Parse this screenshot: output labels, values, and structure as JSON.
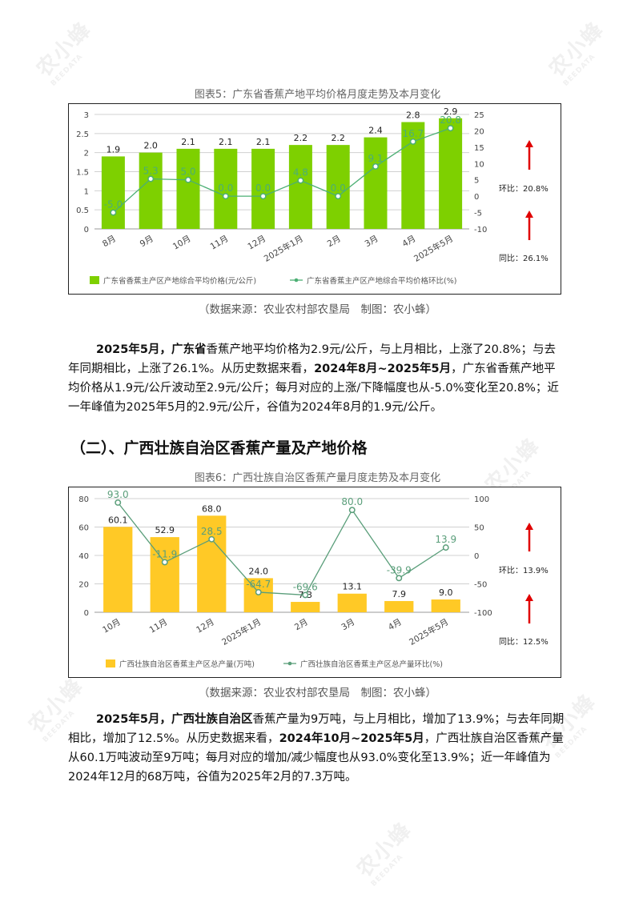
{
  "watermark": {
    "text": "农小蜂",
    "sub": "BEEDATA"
  },
  "figure5": {
    "title": "图表5：广东省香蕉产地平均价格月度走势及本月变化",
    "source": "（数据来源：农业农村部农垦局　制图：农小蜂）",
    "side_labels": {
      "mom": "环比：20.8%",
      "yoy": "同比：26.1%"
    },
    "colors": {
      "bar": "#7ed000",
      "line": "#4caf74",
      "arrow": "#e00000"
    }
  },
  "para1": {
    "s1": "2025年5月，",
    "s2": "广东省",
    "s3": "香蕉产地平均价格为2.9元/公斤，与上月相比，上涨了20.8%；与去年同期相比，上涨了26.1%。从历史数据来看，",
    "s4": "2024年8月~2025年5月",
    "s5": "，广东省香蕉产地平均价格从1.9元/公斤波动至2.9元/公斤；每月对应的上涨/下降幅度也从-5.0%变化至20.8%；近一年峰值为2025年5月的2.9元/公斤，谷值为2024年8月的1.9元/公斤。"
  },
  "section2": {
    "title": "（二）、广西壮族自治区香蕉产量及产地价格"
  },
  "figure6": {
    "title": "图表6：广西壮族自治区香蕉产量月度走势及本月变化",
    "source": "（数据来源：农业农村部农垦局　制图：农小蜂）",
    "side_labels": {
      "mom": "环比：13.9%",
      "yoy": "同比：12.5%"
    },
    "colors": {
      "bar": "#ffc926",
      "line": "#5a9e7a",
      "arrow": "#e00000"
    }
  },
  "para2": {
    "s1": "2025年5月，",
    "s2": "广西壮族自治区",
    "s3": "香蕉产量为9万吨，与上月相比，增加了13.9%；与去年同期相比，增加了12.5%。从历史数据来看，",
    "s4": "2024年10月~2025年5月",
    "s5": "，广西壮族自治区香蕉产量从60.1万吨波动至9万吨；每月对应的增加/减少幅度也从93.0%变化至13.9%；近一年峰值为2024年12月的68万吨，谷值为2025年2月的7.3万吨。"
  },
  "chart_data": [
    {
      "type": "bar",
      "categories": [
        "8月",
        "9月",
        "10月",
        "11月",
        "12月",
        "2025年1月",
        "2月",
        "3月",
        "4月",
        "2025年5月"
      ],
      "series": [
        {
          "name": "广东省香蕉主产区产地综合平均价格(元/公斤)",
          "type": "bar",
          "axis": "left",
          "values": [
            1.9,
            2.0,
            2.1,
            2.1,
            2.1,
            2.2,
            2.2,
            2.4,
            2.8,
            2.9
          ]
        },
        {
          "name": "广东省香蕉主产区产地综合平均价格环比(%)",
          "type": "line",
          "axis": "right",
          "values": [
            -5.0,
            5.3,
            5.0,
            0.0,
            0.0,
            4.8,
            0.0,
            9.1,
            16.7,
            20.8
          ]
        }
      ],
      "y_left": {
        "min": 0,
        "max": 3,
        "ticks": [
          0,
          0.5,
          1,
          1.5,
          2,
          2.5,
          3
        ]
      },
      "y_right": {
        "min": -10,
        "max": 25,
        "ticks": [
          -10,
          -5,
          0,
          5,
          10,
          15,
          20,
          25
        ]
      },
      "bar_labels": [
        "1.9",
        "2.0",
        "2.1",
        "2.1",
        "2.1",
        "2.2",
        "2.2",
        "2.4",
        "2.8",
        "2.9"
      ],
      "line_labels": [
        "-5.0",
        "5.3",
        "5.0",
        "0.0",
        "0.0",
        "4.8",
        "0.0",
        "9.1",
        "16.7",
        "20.8"
      ],
      "grid": true,
      "legend_position": "bottom"
    },
    {
      "type": "bar",
      "categories": [
        "10月",
        "11月",
        "12月",
        "2025年1月",
        "2月",
        "3月",
        "4月",
        "2025年5月"
      ],
      "series": [
        {
          "name": "广西壮族自治区香蕉主产区总产量(万吨)",
          "type": "bar",
          "axis": "left",
          "values": [
            60.1,
            52.9,
            68.0,
            24.0,
            7.3,
            13.1,
            7.9,
            9.0
          ]
        },
        {
          "name": "广西壮族自治区香蕉主产区总产量环比(%)",
          "type": "line",
          "axis": "right",
          "values": [
            93.0,
            -11.9,
            28.5,
            -64.7,
            -69.6,
            80.0,
            -39.9,
            13.9
          ]
        }
      ],
      "y_left": {
        "min": 0,
        "max": 80,
        "ticks": [
          0,
          20,
          40,
          60,
          80
        ]
      },
      "y_right": {
        "min": -100,
        "max": 100,
        "ticks": [
          -100,
          -50,
          0,
          50,
          100
        ]
      },
      "bar_labels": [
        "60.1",
        "52.9",
        "68.0",
        "24.0",
        "7.3",
        "13.1",
        "7.9",
        "9.0"
      ],
      "line_labels": [
        "93.0",
        "-11.9",
        "28.5",
        "-64.7",
        "-69.6",
        "80.0",
        "-39.9",
        "13.9"
      ],
      "grid": true,
      "legend_position": "bottom"
    }
  ]
}
